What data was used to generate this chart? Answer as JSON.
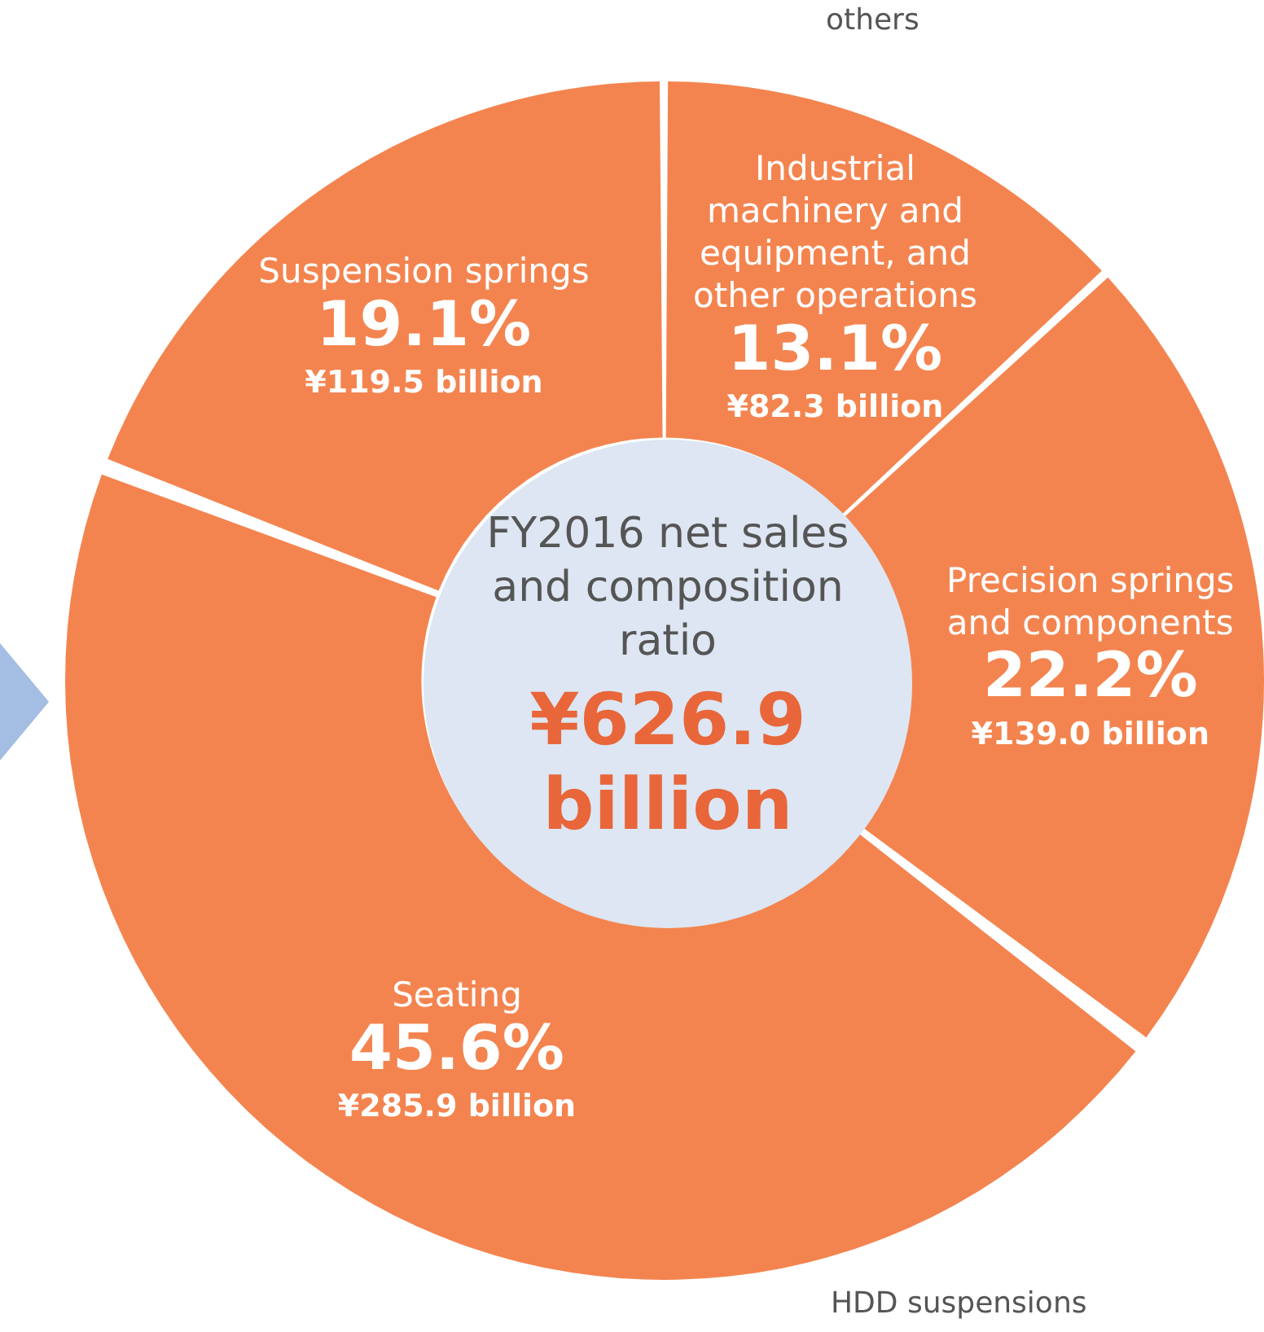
{
  "chart_data": {
    "type": "donut",
    "title": "FY2016 net sales and composition ratio",
    "subtitle": "¥626.9 billion",
    "categories": [
      "Industrial machinery and equipment, and other operations",
      "Precision springs and components",
      "Seating",
      "Suspension springs"
    ],
    "values": [
      13.1,
      22.2,
      45.6,
      19.1
    ],
    "value_labels": [
      "13.1%",
      "22.2%",
      "45.6%",
      "19.1%"
    ],
    "colors": [
      "#f4844f",
      "#f4844f",
      "#f4844f",
      "#f4844f"
    ],
    "annotations": [
      {
        "text": "¥82.3 billion",
        "x": "Industrial machinery and equipment, and other operations"
      },
      {
        "text": "¥139.0 billion",
        "x": "Precision springs and components"
      },
      {
        "text": "¥285.9 billion",
        "x": "Seating"
      },
      {
        "text": "¥119.5 billion",
        "x": "Suspension springs"
      },
      "others",
      "HDD suspensions"
    ],
    "legend": false
  }
}
